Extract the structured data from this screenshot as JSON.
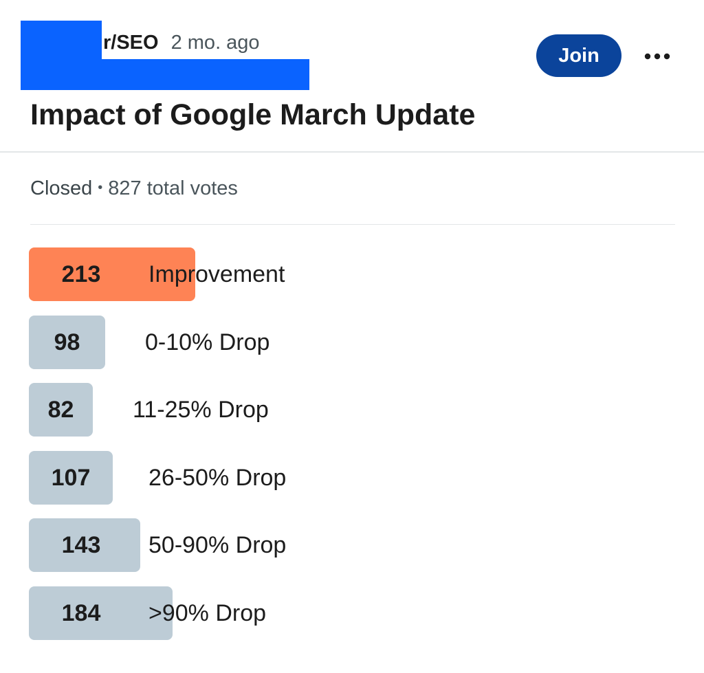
{
  "post": {
    "subreddit": "r/SEO",
    "age": "2 mo. ago",
    "join_label": "Join",
    "more_icon": "more-horizontal-icon",
    "title": "Impact of Google March Update"
  },
  "poll": {
    "status": "Closed",
    "separator": "•",
    "total_votes": "827 total votes",
    "options": [
      {
        "count": "213",
        "label": "Improvement",
        "votes": 213,
        "winner": true
      },
      {
        "count": "98",
        "label": "0-10% Drop",
        "votes": 98,
        "winner": false
      },
      {
        "count": "82",
        "label": "11-25% Drop",
        "votes": 82,
        "winner": false
      },
      {
        "count": "107",
        "label": "26-50% Drop",
        "votes": 107,
        "winner": false
      },
      {
        "count": "143",
        "label": "50-90% Drop",
        "votes": 143,
        "winner": false
      },
      {
        "count": "184",
        "label": ">90% Drop",
        "votes": 184,
        "winner": false
      }
    ]
  },
  "colors": {
    "join_button": "#0b449b",
    "winner_bar": "#fe8355",
    "option_bar": "#bdccd6",
    "redaction": "#0a63ff"
  }
}
